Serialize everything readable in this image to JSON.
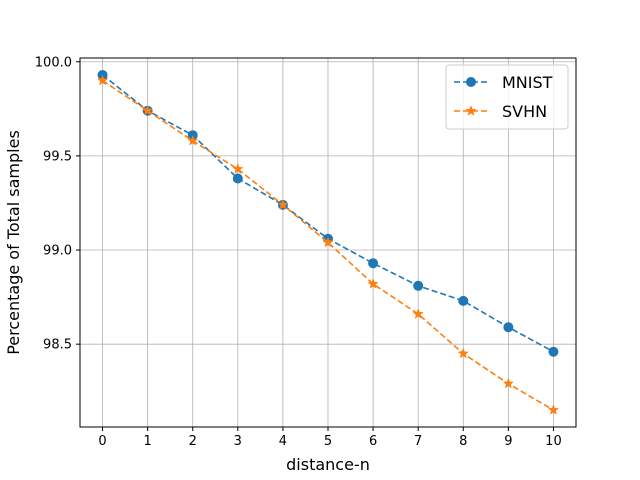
{
  "chart_data": {
    "type": "line",
    "xlabel": "distance-n",
    "ylabel": "Percentage of Total samples",
    "x": [
      0,
      1,
      2,
      3,
      4,
      5,
      6,
      7,
      8,
      9,
      10
    ],
    "xlim": [
      -0.5,
      10.5
    ],
    "ylim": [
      98.06,
      100.02
    ],
    "xticks": [
      "0",
      "1",
      "2",
      "3",
      "4",
      "5",
      "6",
      "7",
      "8",
      "9",
      "10"
    ],
    "yticks": [
      "98.5",
      "99.0",
      "99.5",
      "100.0"
    ],
    "ytick_values": [
      98.5,
      99.0,
      99.5,
      100.0
    ],
    "grid": true,
    "legend_position": "top-right",
    "series": [
      {
        "name": "MNIST",
        "color": "#1f77b4",
        "marker": "circle",
        "linestyle": "dashed",
        "values": [
          99.93,
          99.74,
          99.61,
          99.38,
          99.24,
          99.06,
          98.93,
          98.81,
          98.73,
          98.59,
          98.46
        ]
      },
      {
        "name": "SVHN",
        "color": "#ff7f0e",
        "marker": "star",
        "linestyle": "dashed",
        "values": [
          99.9,
          99.74,
          99.58,
          99.43,
          99.24,
          99.04,
          98.82,
          98.66,
          98.45,
          98.29,
          98.15
        ]
      }
    ]
  }
}
